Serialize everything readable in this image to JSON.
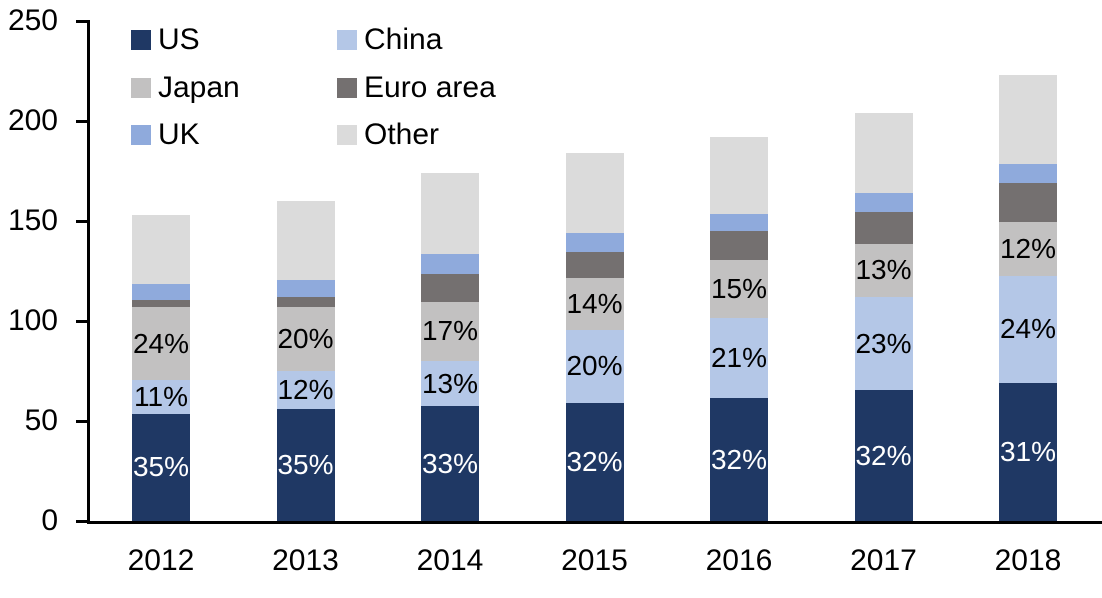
{
  "chart_data": {
    "type": "bar",
    "stacked": true,
    "title": "",
    "categories": [
      "2012",
      "2013",
      "2014",
      "2015",
      "2016",
      "2017",
      "2018"
    ],
    "series": [
      {
        "name": "US",
        "color": "#1F3864",
        "label_color": "#FFFFFF",
        "values": [
          53.6,
          56.0,
          57.4,
          58.9,
          61.4,
          65.3,
          69.1
        ],
        "labels": [
          "35%",
          "35%",
          "33%",
          "32%",
          "32%",
          "32%",
          "31%"
        ]
      },
      {
        "name": "China",
        "color": "#B4C7E7",
        "label_color": "#000000",
        "values": [
          16.8,
          19.2,
          22.6,
          36.8,
          40.3,
          46.9,
          53.5
        ],
        "labels": [
          "11%",
          "12%",
          "13%",
          "20%",
          "21%",
          "23%",
          "24%"
        ]
      },
      {
        "name": "Japan",
        "color": "#C2C1C1",
        "label_color": "#000000",
        "values": [
          36.7,
          32.0,
          29.6,
          25.8,
          28.8,
          26.5,
          26.8
        ],
        "labels": [
          "24%",
          "20%",
          "17%",
          "14%",
          "15%",
          "13%",
          "12%"
        ]
      },
      {
        "name": "Euro area",
        "color": "#747070",
        "values": [
          3.4,
          4.8,
          13.9,
          12.8,
          14.5,
          15.8,
          19.6
        ]
      },
      {
        "name": "UK",
        "color": "#8FAADC",
        "values": [
          8.0,
          8.5,
          10.0,
          9.7,
          8.4,
          9.4,
          9.5
        ]
      },
      {
        "name": "Other",
        "color": "#DBDBDB",
        "values": [
          34.5,
          39.5,
          40.5,
          40.0,
          38.6,
          40.1,
          44.5
        ]
      }
    ],
    "totals": [
      153,
      160,
      174,
      184,
      192,
      204,
      223
    ],
    "ylim": [
      0,
      250
    ],
    "yticks": [
      "0",
      "50",
      "100",
      "150",
      "200",
      "250"
    ],
    "grid": false,
    "legend_position": "top-left",
    "legend_columns": 2,
    "axis_color": "#000000",
    "background": "#FFFFFF"
  }
}
